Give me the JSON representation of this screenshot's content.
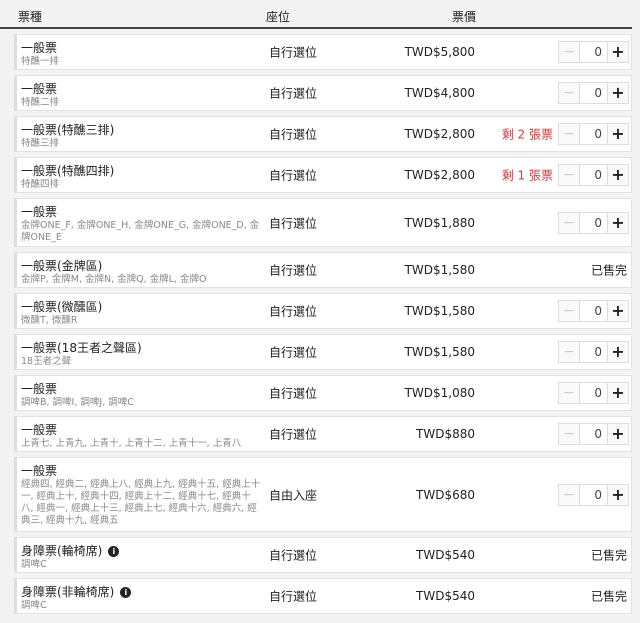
{
  "header": {
    "type": "票種",
    "seat": "座位",
    "price": "票價"
  },
  "tickets": [
    {
      "title": "一般票",
      "sub": "特醮一排",
      "seat": "自行選位",
      "price": "TWD$5,800",
      "remaining": "",
      "sold_out": false,
      "qty": "0"
    },
    {
      "title": "一般票",
      "sub": "特醮二排",
      "seat": "自行選位",
      "price": "TWD$4,800",
      "remaining": "",
      "sold_out": false,
      "qty": "0"
    },
    {
      "title": "一般票(特醮三排)",
      "sub": "特醮三排",
      "seat": "自行選位",
      "price": "TWD$2,800",
      "remaining": "剩 2 張票",
      "sold_out": false,
      "qty": "0"
    },
    {
      "title": "一般票(特醮四排)",
      "sub": "特醮四排",
      "seat": "自行選位",
      "price": "TWD$2,800",
      "remaining": "剩 1 張票",
      "sold_out": false,
      "qty": "0"
    },
    {
      "title": "一般票",
      "sub": "金牌ONE_F, 金牌ONE_H, 金牌ONE_G, 金牌ONE_D, 金牌ONE_E",
      "seat": "自行選位",
      "price": "TWD$1,880",
      "remaining": "",
      "sold_out": false,
      "qty": "0"
    },
    {
      "title": "一般票(金牌區)",
      "sub": "金牌P, 金牌M, 金牌N, 金牌Q, 金牌L, 金牌O",
      "seat": "自行選位",
      "price": "TWD$1,580",
      "remaining": "",
      "sold_out": true,
      "sold_label": "已售完"
    },
    {
      "title": "一般票(微醺區)",
      "sub": "微醺T, 微醺R",
      "seat": "自行選位",
      "price": "TWD$1,580",
      "remaining": "",
      "sold_out": false,
      "qty": "0"
    },
    {
      "title": "一般票(18王者之聲區)",
      "sub": "18王者之聲",
      "seat": "自行選位",
      "price": "TWD$1,580",
      "remaining": "",
      "sold_out": false,
      "qty": "0"
    },
    {
      "title": "一般票",
      "sub": "調啤B, 調啤I, 調啤J, 調啤C",
      "seat": "自行選位",
      "price": "TWD$1,080",
      "remaining": "",
      "sold_out": false,
      "qty": "0"
    },
    {
      "title": "一般票",
      "sub": "上青七, 上青九, 上青十, 上青十二, 上青十一, 上青八",
      "seat": "自行選位",
      "price": "TWD$880",
      "remaining": "",
      "sold_out": false,
      "qty": "0"
    },
    {
      "title": "一般票",
      "sub": "經典四, 經典二, 經典上八, 經典上九, 經典十五, 經典上十一, 經典上十, 經典十四, 經典上十二, 經典十七, 經典十八, 經典一, 經典上十三, 經典上七, 經典十六, 經典六, 經典三, 經典十九, 經典五",
      "seat": "自由入座",
      "price": "TWD$680",
      "remaining": "",
      "sold_out": false,
      "qty": "0"
    },
    {
      "title": "身障票(輪椅席)",
      "sub": "調啤C",
      "seat": "自行選位",
      "price": "TWD$540",
      "remaining": "",
      "sold_out": true,
      "sold_label": "已售完",
      "info": true
    },
    {
      "title": "身障票(非輪椅席)",
      "sub": "調啤C",
      "seat": "自行選位",
      "price": "TWD$540",
      "remaining": "",
      "sold_out": true,
      "sold_label": "已售完",
      "info": true
    }
  ],
  "stepper": {
    "minus": "−",
    "plus": "+"
  },
  "colors": {
    "remaining": "#d0393d",
    "background": "#f3f3f3"
  }
}
